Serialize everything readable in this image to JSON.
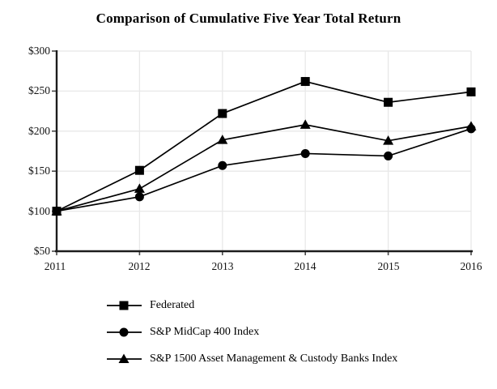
{
  "colors": {
    "series": "#000000",
    "grid": "#e8e8e8",
    "axis": "#1c1c1c",
    "tick": "#4a4a4a",
    "background": "#ffffff"
  },
  "chart_data": {
    "type": "line",
    "title": "Comparison of Cumulative Five Year Total Return",
    "x": [
      "2011",
      "2012",
      "2013",
      "2014",
      "2015",
      "2016"
    ],
    "series": [
      {
        "name": "Federated",
        "marker": "square",
        "values": [
          100,
          151,
          222,
          262,
          236,
          249
        ]
      },
      {
        "name": "S&P MidCap 400 Index",
        "marker": "circle",
        "values": [
          100,
          118,
          157,
          172,
          169,
          203
        ]
      },
      {
        "name": "S&P 1500 Asset Management & Custody Banks Index",
        "marker": "triangle",
        "values": [
          100,
          128,
          189,
          208,
          188,
          206
        ]
      }
    ],
    "ylim": [
      50,
      300
    ],
    "y_ticks": [
      300,
      250,
      200,
      150,
      100,
      50
    ],
    "y_tick_labels": [
      "$300",
      "$250",
      "$200",
      "$150",
      "$100",
      "$50"
    ],
    "xlabel": "",
    "ylabel": "",
    "grid": true,
    "legend_position": "bottom"
  }
}
